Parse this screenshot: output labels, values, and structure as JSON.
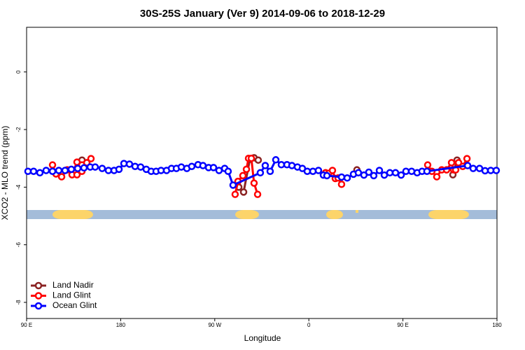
{
  "chart_data": {
    "type": "line",
    "title": "30S-25S January (Ver 9)   2014-09-06 to 2018-12-29",
    "xlabel": "Longitude",
    "ylabel": "XCO2 - MLO trend (ppm)",
    "xlim": [
      90,
      540
    ],
    "xticks": [
      {
        "value": 90,
        "label": "90 E"
      },
      {
        "value": 180,
        "label": "180"
      },
      {
        "value": 270,
        "label": "90 W"
      },
      {
        "value": 360,
        "label": "0"
      },
      {
        "value": 450,
        "label": "90 E"
      },
      {
        "value": 540,
        "label": "180"
      }
    ],
    "ylim": [
      -8.56,
      1.55
    ],
    "yticks": [
      0,
      -2,
      -4,
      -6,
      -8
    ],
    "legend": "bottom-left",
    "series": [
      {
        "name": "Land Nadir",
        "color": "#8b2323",
        "x": [
          143,
          null,
          293,
          297.6,
          303.6,
          307.6,
          311.6,
          null,
          406,
          null,
          497.8,
          501.8
        ],
        "values": [
          -3.06,
          null,
          -4.0,
          -4.17,
          -3.03,
          -2.98,
          -3.06,
          null,
          -3.4,
          null,
          -3.57,
          -3.06
        ]
      },
      {
        "name": "Land Glint",
        "color": "#ff0000",
        "x": [
          114.8,
          118.1,
          123.5,
          128.8,
          133.5,
          138.2,
          138.2,
          142.9,
          142.9,
          147.6,
          151.6,
          null,
          289.5,
          292.2,
          296.9,
          300.3,
          302.3,
          305,
          307.6,
          311,
          null,
          376,
          379,
          382.6,
          385.3,
          388,
          391.3,
          null,
          473.7,
          477.7,
          482.4,
          487.1,
          491.8,
          496.5,
          498.5,
          500.5,
          503.2,
          507.2,
          511.3
        ],
        "values": [
          -3.23,
          -3.54,
          -3.64,
          -3.4,
          -3.57,
          -3.13,
          -3.57,
          -3.45,
          -3.23,
          -3.15,
          -3.01,
          null,
          -4.25,
          -3.8,
          -3.6,
          -3.38,
          -3.0,
          -3.0,
          -3.86,
          -4.25,
          null,
          -3.5,
          -3.52,
          -3.42,
          -3.7,
          -3.68,
          -3.9,
          null,
          -3.23,
          -3.45,
          -3.64,
          -3.4,
          -3.4,
          -3.15,
          -3.4,
          -3.4,
          -3.15,
          -3.28,
          -3.01
        ]
      },
      {
        "name": "Ocean Glint",
        "color": "#0000ff",
        "x": [
          91.3,
          96.7,
          102.7,
          108.7,
          114.8,
          120.8,
          126.8,
          132.8,
          138.9,
          144.9,
          150.9,
          155.6,
          162.3,
          168.3,
          173.7,
          178.4,
          183.1,
          188.4,
          193.8,
          199.1,
          204.5,
          209.2,
          213.9,
          218.6,
          223.9,
          228.6,
          233.3,
          238,
          243.3,
          248,
          254,
          258.7,
          264.1,
          268.8,
          274.1,
          279.5,
          282.8,
          287.5,
          313.6,
          318.3,
          323,
          328.4,
          333.7,
          339.1,
          343.8,
          349.1,
          353.8,
          358.5,
          363.9,
          369.2,
          373.9,
          377.3,
          391.3,
          396.7,
          402.7,
          407.4,
          412.7,
          417.4,
          422.1,
          427.5,
          432.2,
          437.5,
          442.9,
          448.3,
          452.9,
          458.3,
          463.6,
          468.3,
          473,
          511.9,
          517.2,
          523.3,
          528.6,
          534,
          539.3
        ],
        "values": [
          -3.45,
          -3.45,
          -3.5,
          -3.42,
          -3.45,
          -3.42,
          -3.42,
          -3.38,
          -3.35,
          -3.33,
          -3.3,
          -3.3,
          -3.35,
          -3.42,
          -3.42,
          -3.38,
          -3.18,
          -3.2,
          -3.28,
          -3.3,
          -3.38,
          -3.45,
          -3.45,
          -3.42,
          -3.42,
          -3.35,
          -3.35,
          -3.3,
          -3.35,
          -3.28,
          -3.22,
          -3.25,
          -3.32,
          -3.32,
          -3.42,
          -3.35,
          -3.45,
          -3.93,
          -3.5,
          -3.25,
          -3.45,
          -3.05,
          -3.22,
          -3.22,
          -3.25,
          -3.3,
          -3.35,
          -3.45,
          -3.45,
          -3.42,
          -3.58,
          -3.6,
          -3.65,
          -3.68,
          -3.55,
          -3.5,
          -3.58,
          -3.48,
          -3.6,
          -3.42,
          -3.58,
          -3.5,
          -3.5,
          -3.58,
          -3.45,
          -3.45,
          -3.5,
          -3.45,
          -3.45,
          -3.25,
          -3.35,
          -3.35,
          -3.43,
          -3.42,
          -3.42
        ]
      }
    ]
  }
}
